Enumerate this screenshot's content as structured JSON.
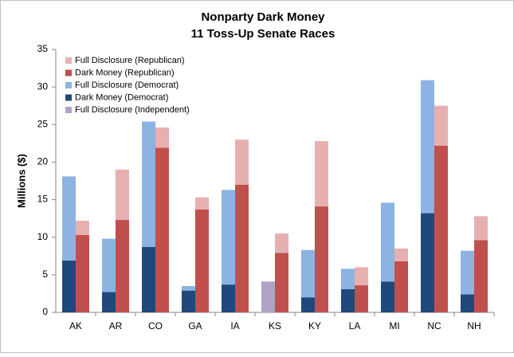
{
  "chart_data": {
    "type": "bar",
    "title": "Nonparty Dark Money",
    "subtitle": "11 Toss-Up Senate Races",
    "y_label": "Millions  ($)",
    "categories": [
      "AK",
      "AR",
      "CO",
      "GA",
      "IA",
      "KS",
      "KY",
      "LA",
      "MI",
      "NC",
      "NH"
    ],
    "series": [
      {
        "name": "Full Disclosure (Republican)",
        "color": "#e6b0b1",
        "slot": "right",
        "values": [
          1.9,
          6.7,
          2.7,
          1.6,
          6.0,
          2.6,
          8.7,
          2.4,
          1.7,
          5.3,
          3.2
        ]
      },
      {
        "name": "Dark Money (Republican)",
        "color": "#c0504d",
        "slot": "right",
        "values": [
          10.3,
          12.3,
          21.9,
          13.7,
          17.0,
          7.9,
          14.1,
          3.6,
          6.8,
          22.2,
          9.6
        ]
      },
      {
        "name": "Full Disclosure (Democrat)",
        "color": "#8db3e2",
        "slot": "left",
        "values": [
          11.2,
          7.1,
          16.7,
          0.6,
          12.6,
          null,
          6.3,
          2.7,
          10.5,
          17.7,
          5.8
        ]
      },
      {
        "name": "Dark Money (Democrat)",
        "color": "#1f497d",
        "slot": "left",
        "values": [
          6.9,
          2.7,
          8.7,
          2.9,
          3.7,
          null,
          2.0,
          3.1,
          4.1,
          13.2,
          2.4
        ]
      },
      {
        "name": "Full Disclosure (Independent)",
        "color": "#b2a1c7",
        "slot": "left",
        "values": [
          null,
          null,
          null,
          null,
          null,
          4.1,
          null,
          null,
          null,
          null,
          null
        ]
      }
    ],
    "ylim": [
      0,
      35
    ],
    "yticks": [
      0,
      5,
      10,
      15,
      20,
      25,
      30,
      35
    ],
    "grid": false,
    "legend": "top-left"
  }
}
